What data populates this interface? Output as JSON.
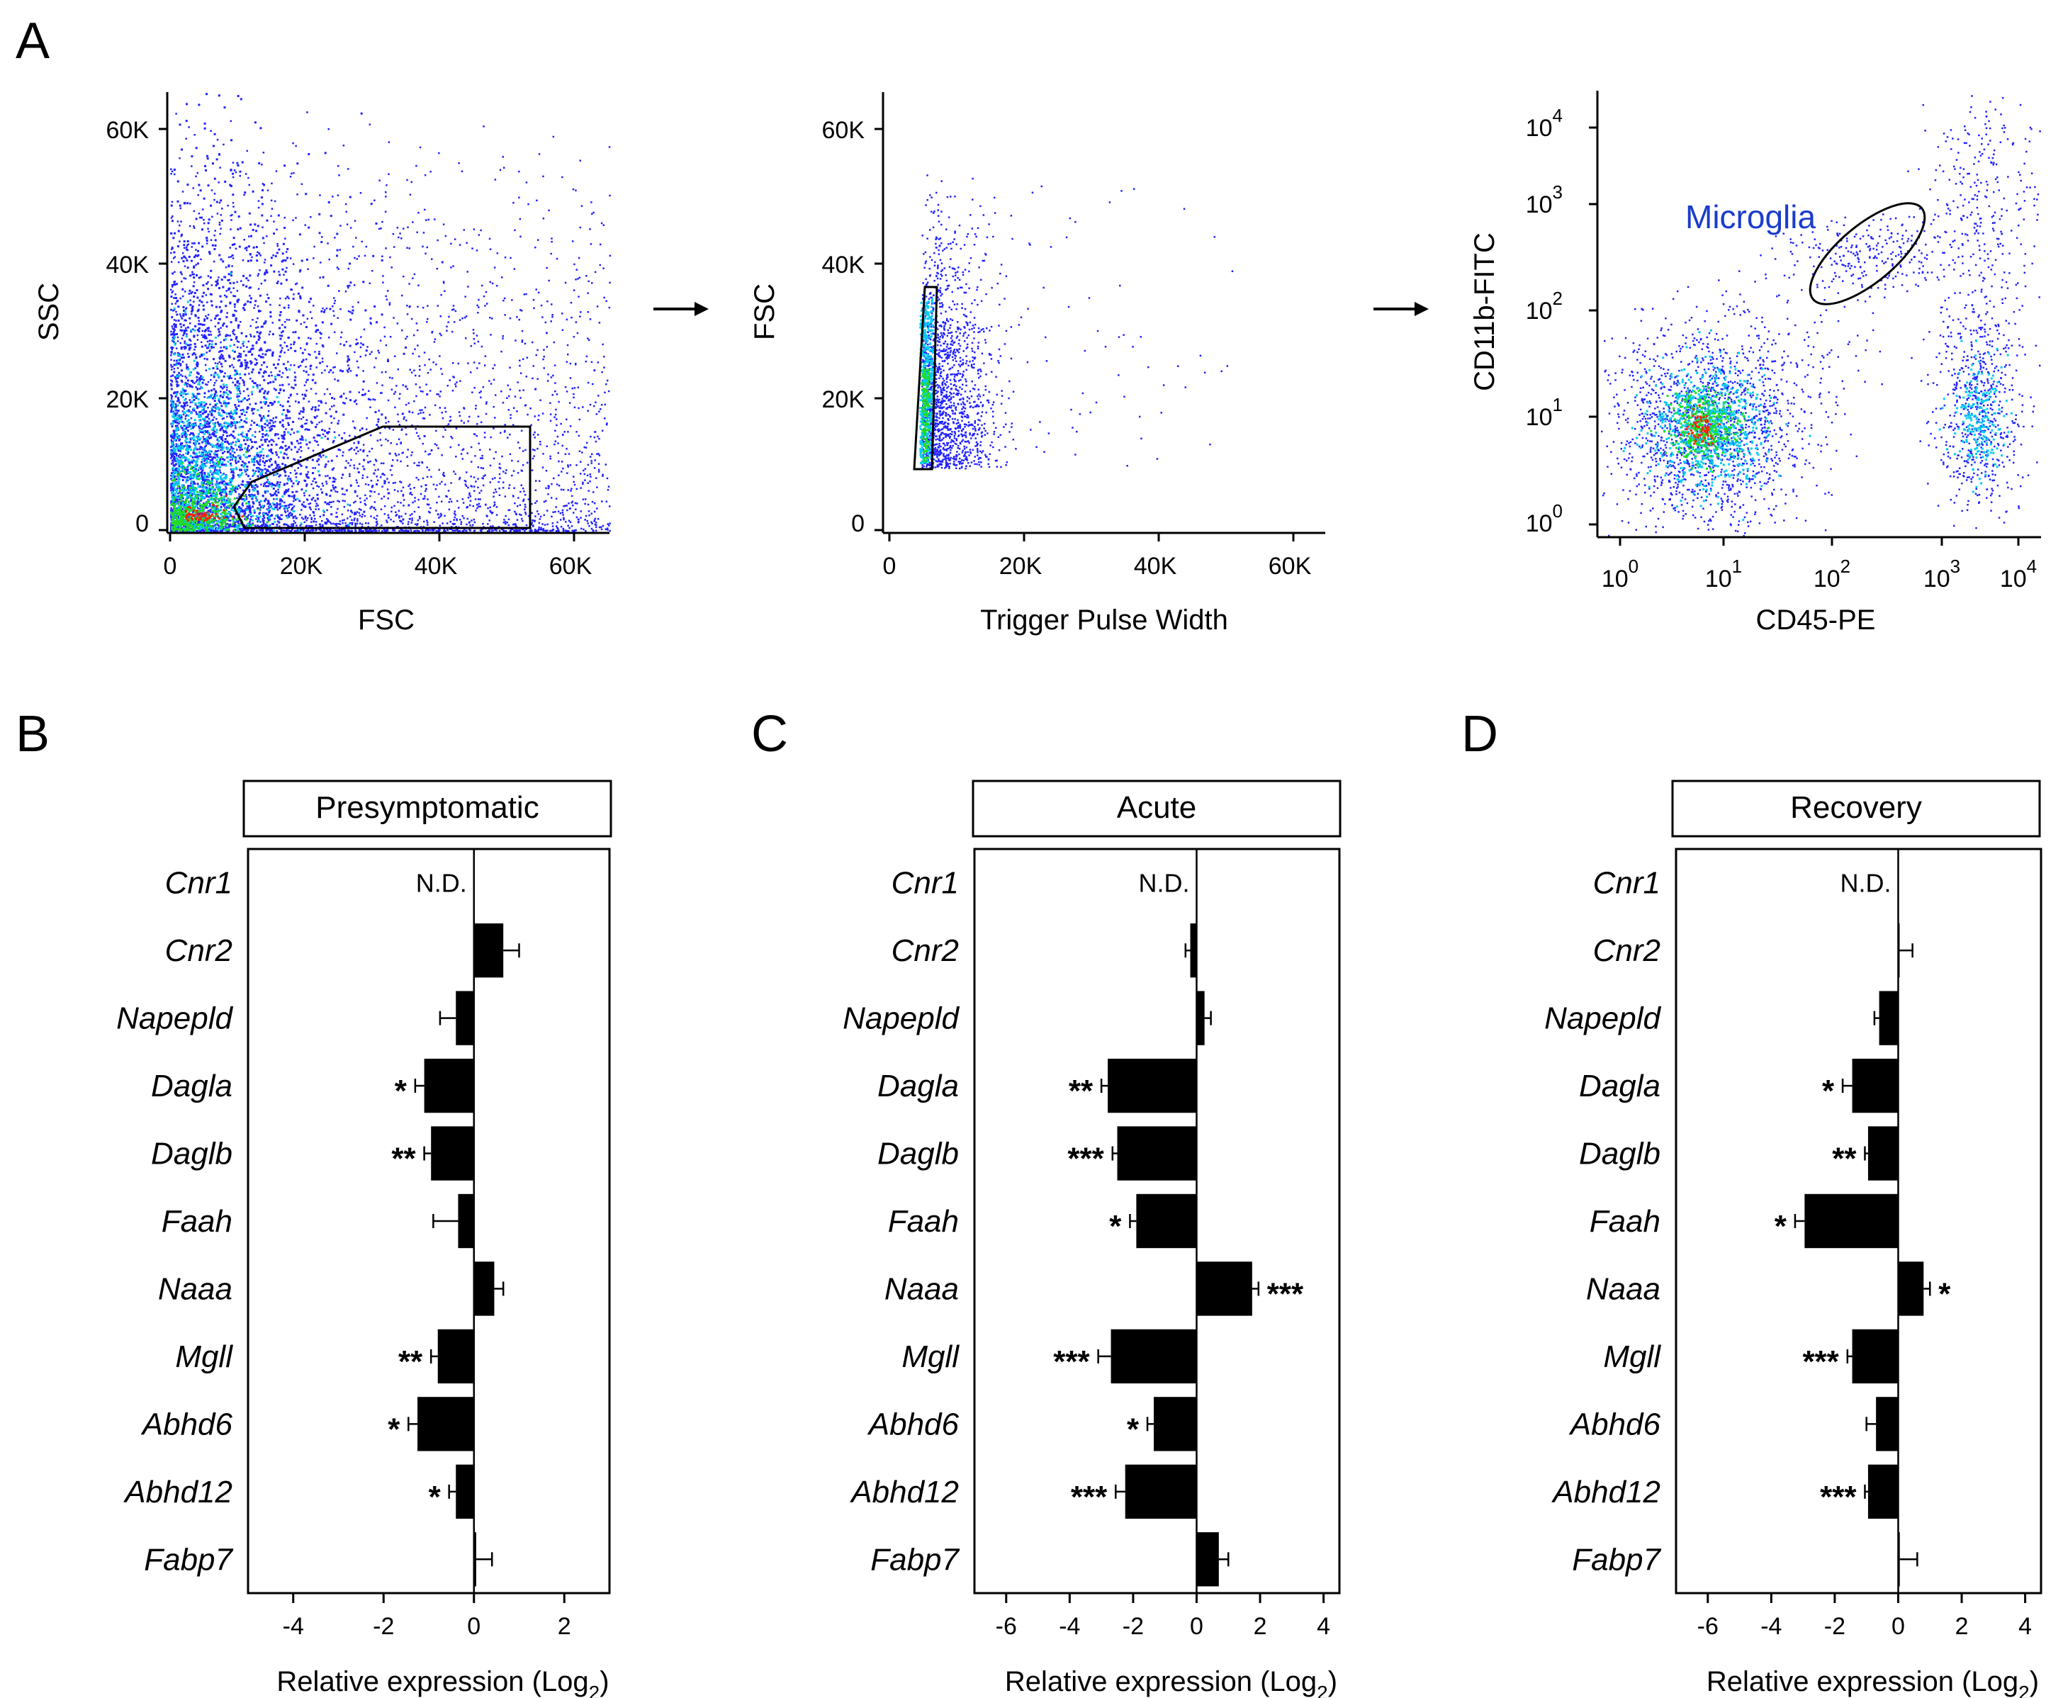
{
  "panels": {
    "A": "A",
    "B": "B",
    "C": "C",
    "D": "D"
  },
  "colors": {
    "density_low": "#2222ff",
    "density_mid": "#00ccee",
    "density_high": "#22dd22",
    "density_top": "#ff2200",
    "bar": "#000000",
    "microglia_label": "#1a3ccc"
  },
  "flow_plots": [
    {
      "id": "fsc-ssc",
      "xlabel": "FSC",
      "ylabel": "SSC",
      "xticks": [
        "0",
        "20K",
        "40K",
        "60K"
      ],
      "yticks": [
        "0",
        "20K",
        "40K",
        "60K"
      ],
      "gate": "polygon"
    },
    {
      "id": "pulse-width",
      "xlabel": "Trigger Pulse Width",
      "ylabel": "FSC",
      "xticks": [
        "0",
        "20K",
        "40K",
        "60K"
      ],
      "yticks": [
        "0",
        "20K",
        "40K",
        "60K"
      ],
      "gate": "polygon"
    },
    {
      "id": "cd45-cd11b",
      "xlabel": "CD45-PE",
      "ylabel": "CD11b-FITC",
      "xticks": [
        {
          "base": "10",
          "exp": "0"
        },
        {
          "base": "10",
          "exp": "1"
        },
        {
          "base": "10",
          "exp": "2"
        },
        {
          "base": "10",
          "exp": "3"
        },
        {
          "base": "10",
          "exp": "4"
        }
      ],
      "yticks": [
        {
          "base": "10",
          "exp": "0"
        },
        {
          "base": "10",
          "exp": "1"
        },
        {
          "base": "10",
          "exp": "2"
        },
        {
          "base": "10",
          "exp": "3"
        },
        {
          "base": "10",
          "exp": "4"
        }
      ],
      "gate_label": "Microglia",
      "gate": "ellipse"
    }
  ],
  "chart_data": [
    {
      "type": "bar",
      "orientation": "horizontal",
      "title": "Presymptomatic",
      "xlabel": "Relative expression (Log",
      "xlabel_sub": "2",
      "xlabel_end": ")",
      "xlim": [
        -5,
        3
      ],
      "xticks": [
        -4,
        -2,
        0,
        2
      ],
      "categories": [
        "Cnr1",
        "Cnr2",
        "Napepld",
        "Dagla",
        "Daglb",
        "Faah",
        "Naaa",
        "Mgll",
        "Abhd6",
        "Abhd12",
        "Fabp7"
      ],
      "values": [
        null,
        0.65,
        -0.4,
        -1.1,
        -0.95,
        -0.35,
        0.45,
        -0.8,
        -1.25,
        -0.4,
        0.05
      ],
      "errors": [
        0,
        0.35,
        0.35,
        0.2,
        0.15,
        0.55,
        0.2,
        0.15,
        0.2,
        0.15,
        0.35
      ],
      "significance": [
        "",
        "",
        "",
        "*",
        "**",
        "",
        "",
        "**",
        "*",
        "*",
        ""
      ],
      "not_detected": [
        "N.D.",
        "",
        "",
        "",
        "",
        "",
        "",
        "",
        "",
        "",
        ""
      ]
    },
    {
      "type": "bar",
      "orientation": "horizontal",
      "title": "Acute",
      "xlabel": "Relative expression (Log",
      "xlabel_sub": "2",
      "xlabel_end": ")",
      "xlim": [
        -7,
        4.5
      ],
      "xticks": [
        -6,
        -4,
        -2,
        0,
        2,
        4
      ],
      "categories": [
        "Cnr1",
        "Cnr2",
        "Napepld",
        "Dagla",
        "Daglb",
        "Faah",
        "Naaa",
        "Mgll",
        "Abhd6",
        "Abhd12",
        "Fabp7"
      ],
      "values": [
        null,
        -0.2,
        0.25,
        -2.8,
        -2.5,
        -1.9,
        1.75,
        -2.7,
        -1.35,
        -2.25,
        0.7
      ],
      "errors": [
        0,
        0.15,
        0.2,
        0.2,
        0.15,
        0.2,
        0.2,
        0.4,
        0.2,
        0.3,
        0.3
      ],
      "significance": [
        "",
        "",
        "",
        "**",
        "***",
        "*",
        "***",
        "***",
        "*",
        "***",
        ""
      ],
      "not_detected": [
        "N.D.",
        "",
        "",
        "",
        "",
        "",
        "",
        "",
        "",
        "",
        ""
      ]
    },
    {
      "type": "bar",
      "orientation": "horizontal",
      "title": "Recovery",
      "xlabel": "Relative expression (Log",
      "xlabel_sub": "2",
      "xlabel_end": ")",
      "xlim": [
        -7,
        4.5
      ],
      "xticks": [
        -6,
        -4,
        -2,
        0,
        2,
        4
      ],
      "categories": [
        "Cnr1",
        "Cnr2",
        "Napepld",
        "Dagla",
        "Daglb",
        "Faah",
        "Naaa",
        "Mgll",
        "Abhd6",
        "Abhd12",
        "Fabp7"
      ],
      "values": [
        null,
        0.0,
        -0.6,
        -1.45,
        -0.95,
        -2.95,
        0.8,
        -1.45,
        -0.7,
        -0.95,
        0.05
      ],
      "errors": [
        0,
        0.45,
        0.15,
        0.3,
        0.1,
        0.3,
        0.2,
        0.15,
        0.3,
        0.1,
        0.55
      ],
      "significance": [
        "",
        "",
        "",
        "*",
        "**",
        "*",
        "*",
        "***",
        "",
        "***",
        ""
      ],
      "not_detected": [
        "N.D.",
        "",
        "",
        "",
        "",
        "",
        "",
        "",
        "",
        "",
        ""
      ]
    }
  ]
}
